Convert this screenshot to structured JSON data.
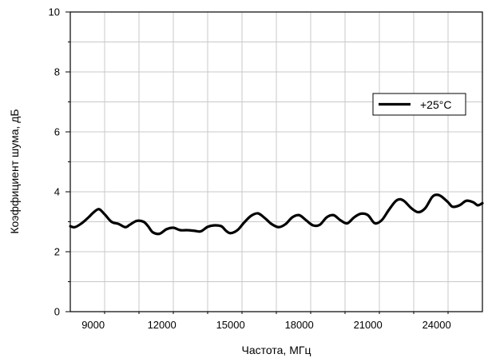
{
  "chart_data": {
    "type": "line",
    "title": "",
    "xlabel": "Частота, МГц",
    "ylabel": "Коэффициент шума, дБ",
    "xlim": [
      8000,
      26000
    ],
    "ylim": [
      0,
      10
    ],
    "x_ticks": [
      9000,
      12000,
      15000,
      18000,
      21000,
      24000
    ],
    "y_ticks": [
      0,
      2,
      4,
      6,
      8,
      10
    ],
    "x_tick_labels": [
      "9000",
      "12000",
      "15000",
      "18000",
      "21000",
      "24000"
    ],
    "y_tick_labels": [
      "0",
      "2",
      "4",
      "6",
      "8",
      "10"
    ],
    "grid": true,
    "legend_position": "top-right",
    "series": [
      {
        "name": "+25°C",
        "color": "#000000",
        "x": [
          8000,
          8200,
          8500,
          8800,
          9000,
          9250,
          9500,
          9800,
          10100,
          10400,
          10600,
          10900,
          11200,
          11400,
          11600,
          11900,
          12200,
          12500,
          12800,
          13100,
          13400,
          13700,
          14000,
          14300,
          14600,
          14800,
          15000,
          15300,
          15600,
          15900,
          16200,
          16500,
          16800,
          17100,
          17400,
          17700,
          18000,
          18300,
          18600,
          18900,
          19200,
          19500,
          19800,
          20100,
          20400,
          20700,
          21000,
          21300,
          21600,
          21900,
          22200,
          22400,
          22600,
          22900,
          23200,
          23500,
          23800,
          24000,
          24200,
          24500,
          24700,
          25000,
          25300,
          25600,
          25800,
          26000
        ],
        "y": [
          2.85,
          2.82,
          2.95,
          3.15,
          3.3,
          3.42,
          3.25,
          3.0,
          2.93,
          2.82,
          2.9,
          3.03,
          3.0,
          2.85,
          2.65,
          2.6,
          2.75,
          2.8,
          2.72,
          2.72,
          2.7,
          2.68,
          2.83,
          2.88,
          2.85,
          2.7,
          2.62,
          2.72,
          2.98,
          3.2,
          3.28,
          3.12,
          2.92,
          2.82,
          2.92,
          3.15,
          3.22,
          3.05,
          2.88,
          2.9,
          3.15,
          3.22,
          3.05,
          2.95,
          3.15,
          3.27,
          3.22,
          2.95,
          3.05,
          3.38,
          3.68,
          3.75,
          3.68,
          3.45,
          3.32,
          3.45,
          3.82,
          3.9,
          3.85,
          3.65,
          3.5,
          3.55,
          3.7,
          3.65,
          3.55,
          3.62
        ]
      }
    ]
  }
}
